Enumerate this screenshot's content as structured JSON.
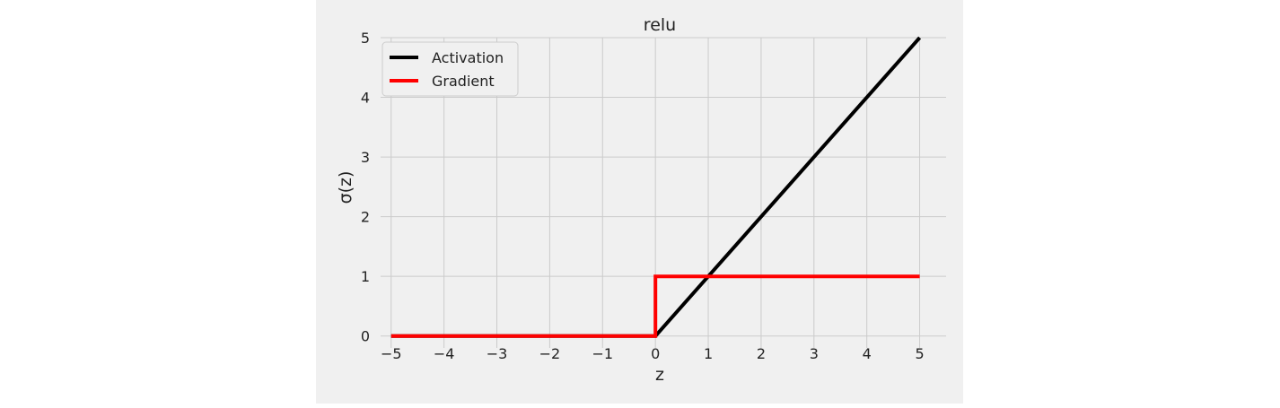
{
  "chart_data": {
    "type": "line",
    "title": "relu",
    "xlabel": "z",
    "ylabel": "σ(z)",
    "xlim": [
      -5.2,
      5.5
    ],
    "ylim": [
      -0.2,
      5.0
    ],
    "xticks": [
      -5,
      -4,
      -3,
      -2,
      -1,
      0,
      1,
      2,
      3,
      4,
      5
    ],
    "xtick_labels": [
      "−5",
      "−4",
      "−3",
      "−2",
      "−1",
      "0",
      "1",
      "2",
      "3",
      "4",
      "5"
    ],
    "yticks": [
      0,
      1,
      2,
      3,
      4,
      5
    ],
    "ytick_labels": [
      "0",
      "1",
      "2",
      "3",
      "4",
      "5"
    ],
    "grid": true,
    "legend_position": "top-left",
    "background_color": "#f0f0f0",
    "series": [
      {
        "name": "Activation",
        "color": "#000000",
        "x": [
          -5,
          0,
          5
        ],
        "y": [
          0,
          0,
          5
        ]
      },
      {
        "name": "Gradient",
        "color": "#ff0000",
        "x": [
          -5,
          0,
          0,
          5
        ],
        "y": [
          0,
          0,
          1,
          1
        ]
      }
    ]
  }
}
